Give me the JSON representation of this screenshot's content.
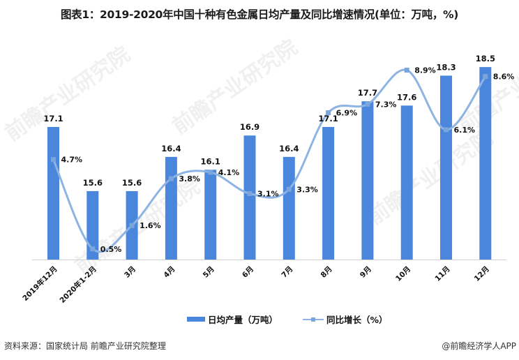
{
  "title": "图表1：2019-2020年中国十种有色金属日均产量及同比增速情况(单位：万吨，%)",
  "watermark": "前瞻产业研究院",
  "footer": {
    "source": "资料来源：国家统计局 前瞻产业研究院整理",
    "credit": "@前瞻经济学人APP"
  },
  "colors": {
    "bar": "#4a86dc",
    "line": "#8db4e2",
    "marker": "#7aa5dd",
    "axis": "#d0d0d0"
  },
  "chart_data": {
    "type": "bar+line",
    "title": "图表1：2019-2020年中国十种有色金属日均产量及同比增速情况(单位：万吨，%)",
    "categories": [
      "2019年12月",
      "2020年1-2月",
      "3月",
      "4月",
      "5月",
      "6月",
      "7月",
      "8月",
      "9月",
      "10月",
      "11月",
      "12月"
    ],
    "series": [
      {
        "name": "日均产量（万吨）",
        "type": "bar",
        "axis": "left",
        "values": [
          17.1,
          15.6,
          15.6,
          16.4,
          16.1,
          16.9,
          16.4,
          17.1,
          17.7,
          17.6,
          18.3,
          18.5
        ],
        "labels": [
          "17.1",
          "15.6",
          "15.6",
          "16.4",
          "16.1",
          "16.9",
          "16.4",
          "17.1",
          "17.7",
          "17.6",
          "18.3",
          "18.5"
        ]
      },
      {
        "name": "同比增长（%）",
        "type": "line",
        "axis": "right",
        "smooth": true,
        "values": [
          4.7,
          0.5,
          1.6,
          3.8,
          4.1,
          3.1,
          3.3,
          6.9,
          7.3,
          8.9,
          6.1,
          8.6
        ],
        "labels": [
          "4.7%",
          "0.5%",
          "1.6%",
          "3.8%",
          "4.1%",
          "3.1%",
          "3.3%",
          "6.9%",
          "7.3%",
          "8.9%",
          "6.1%",
          "8.6%"
        ]
      }
    ],
    "ylim_left": [
      14,
      20
    ],
    "ylim_right": [
      0,
      11
    ],
    "grid": false,
    "legend": "bottom"
  }
}
